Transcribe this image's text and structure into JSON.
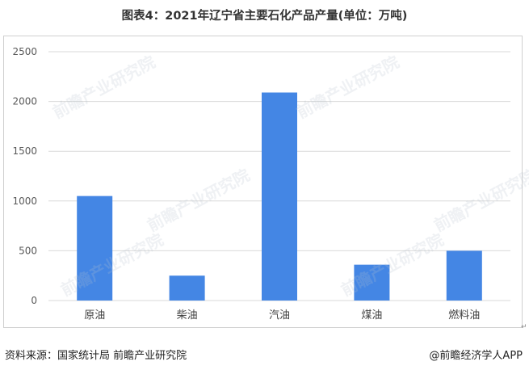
{
  "title": "图表4：2021年辽宁省主要石化产品产量(单位：万吨)",
  "source": "资料来源：国家统计局 前瞻产业研究院",
  "brand": "@前瞻经济学人APP",
  "watermark": "前瞻产业研究院",
  "return_mark": "↵",
  "colors": {
    "bar": "#4486E4",
    "grid": "#d9d9d9",
    "axis_text": "#595959"
  },
  "chart_data": {
    "type": "bar",
    "title": "图表4：2021年辽宁省主要石化产品产量(单位：万吨)",
    "categories": [
      "原油",
      "柴油",
      "汽油",
      "煤油",
      "燃料油"
    ],
    "values": [
      1050,
      250,
      2090,
      360,
      500
    ],
    "ylim": [
      0,
      2500
    ],
    "yticks": [
      0,
      500,
      1000,
      1500,
      2000,
      2500
    ],
    "xlabel": "",
    "ylabel": "",
    "grid": true,
    "legend": "none"
  }
}
